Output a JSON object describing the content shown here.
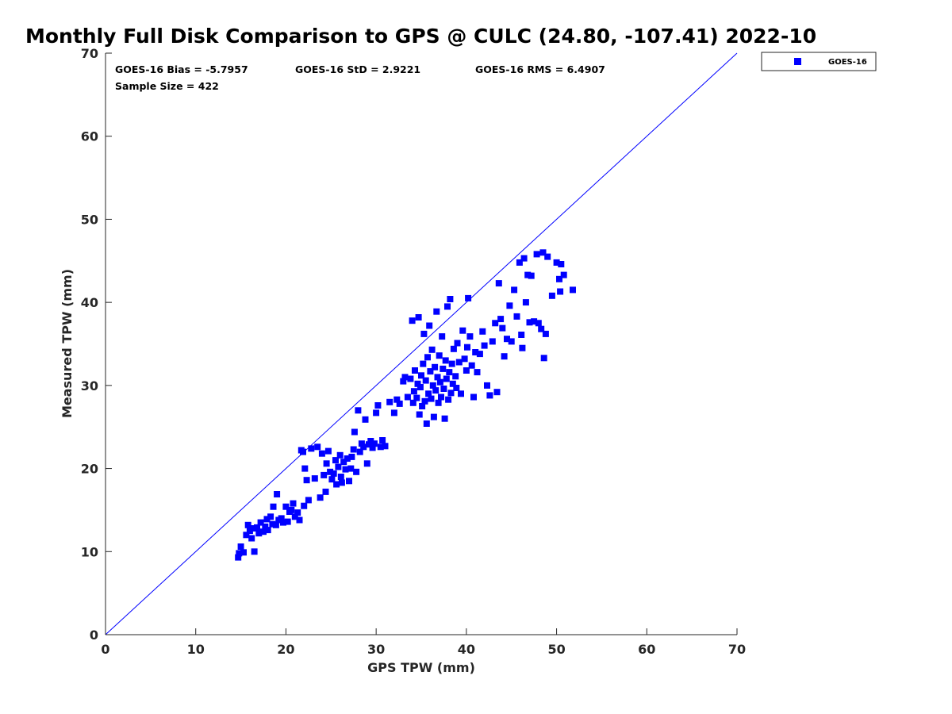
{
  "chart_data": {
    "type": "scatter",
    "title": "Monthly Full Disk Comparison to GPS @ CULC (24.80, -107.41) 2022-10",
    "xlabel": "GPS TPW (mm)",
    "ylabel": "Measured TPW (mm)",
    "xlim": [
      0,
      70
    ],
    "ylim": [
      0,
      70
    ],
    "xticks": [
      "0",
      "10",
      "20",
      "30",
      "40",
      "50",
      "60",
      "70"
    ],
    "yticks": [
      "0",
      "10",
      "20",
      "30",
      "40",
      "50",
      "60",
      "70"
    ],
    "grid": false,
    "legend_position": "top-right (outside plot)",
    "stats": {
      "bias": "GOES-16 Bias = -5.7957",
      "std": "GOES-16 StD = 2.9221",
      "rms": "GOES-16 RMS = 6.4907",
      "sample": "Sample Size = 422"
    },
    "reference_line": {
      "from": [
        0,
        0
      ],
      "to": [
        70,
        70
      ],
      "color": "#0000ff"
    },
    "series": [
      {
        "name": "GOES-16",
        "color": "#0000ff",
        "marker": "square",
        "points": [
          [
            14.7,
            9.3
          ],
          [
            14.8,
            9.8
          ],
          [
            15.0,
            10.6
          ],
          [
            15.3,
            9.9
          ],
          [
            15.6,
            12.0
          ],
          [
            15.8,
            13.2
          ],
          [
            16.0,
            12.5
          ],
          [
            16.2,
            11.6
          ],
          [
            16.4,
            12.8
          ],
          [
            16.5,
            10.0
          ],
          [
            16.8,
            12.9
          ],
          [
            17.0,
            12.2
          ],
          [
            17.2,
            13.5
          ],
          [
            17.5,
            12.4
          ],
          [
            17.7,
            13.0
          ],
          [
            17.9,
            13.9
          ],
          [
            18.0,
            12.6
          ],
          [
            18.3,
            14.2
          ],
          [
            18.5,
            13.3
          ],
          [
            18.6,
            15.4
          ],
          [
            18.9,
            13.2
          ],
          [
            19.0,
            16.9
          ],
          [
            19.2,
            13.8
          ],
          [
            19.5,
            14.0
          ],
          [
            19.7,
            13.5
          ],
          [
            20.0,
            15.4
          ],
          [
            20.2,
            13.6
          ],
          [
            20.4,
            14.8
          ],
          [
            20.6,
            15.0
          ],
          [
            20.8,
            15.8
          ],
          [
            21.0,
            14.2
          ],
          [
            21.3,
            14.7
          ],
          [
            21.5,
            13.8
          ],
          [
            21.7,
            22.2
          ],
          [
            21.9,
            22.0
          ],
          [
            22.0,
            15.5
          ],
          [
            22.1,
            20.0
          ],
          [
            22.3,
            18.6
          ],
          [
            22.5,
            16.2
          ],
          [
            22.8,
            22.4
          ],
          [
            23.2,
            18.8
          ],
          [
            23.5,
            22.6
          ],
          [
            23.8,
            16.5
          ],
          [
            24.0,
            21.8
          ],
          [
            24.2,
            19.2
          ],
          [
            24.4,
            17.2
          ],
          [
            24.5,
            20.6
          ],
          [
            24.7,
            22.1
          ],
          [
            24.9,
            19.6
          ],
          [
            25.1,
            18.7
          ],
          [
            25.3,
            19.4
          ],
          [
            25.5,
            21.0
          ],
          [
            25.6,
            18.1
          ],
          [
            25.8,
            20.2
          ],
          [
            26.0,
            21.6
          ],
          [
            26.1,
            19.0
          ],
          [
            26.2,
            18.3
          ],
          [
            26.4,
            20.8
          ],
          [
            26.6,
            19.9
          ],
          [
            26.8,
            21.2
          ],
          [
            27.0,
            18.5
          ],
          [
            27.2,
            20.0
          ],
          [
            27.3,
            21.4
          ],
          [
            27.5,
            22.3
          ],
          [
            27.6,
            24.4
          ],
          [
            27.8,
            19.6
          ],
          [
            28.0,
            27.0
          ],
          [
            28.2,
            22.0
          ],
          [
            28.4,
            23.0
          ],
          [
            28.6,
            22.6
          ],
          [
            28.8,
            25.9
          ],
          [
            29.0,
            20.6
          ],
          [
            29.2,
            22.9
          ],
          [
            29.4,
            23.3
          ],
          [
            29.6,
            22.5
          ],
          [
            29.8,
            23.0
          ],
          [
            30.0,
            26.7
          ],
          [
            30.2,
            27.6
          ],
          [
            30.5,
            22.6
          ],
          [
            30.7,
            23.4
          ],
          [
            31.0,
            22.7
          ],
          [
            31.5,
            28.0
          ],
          [
            32.0,
            26.7
          ],
          [
            32.3,
            28.3
          ],
          [
            32.6,
            27.8
          ],
          [
            33.0,
            30.5
          ],
          [
            33.2,
            31.0
          ],
          [
            33.5,
            28.6
          ],
          [
            33.8,
            30.8
          ],
          [
            34.0,
            37.8
          ],
          [
            34.1,
            27.9
          ],
          [
            34.2,
            29.3
          ],
          [
            34.3,
            31.8
          ],
          [
            34.5,
            28.5
          ],
          [
            34.6,
            30.2
          ],
          [
            34.7,
            38.2
          ],
          [
            34.8,
            26.5
          ],
          [
            34.9,
            29.8
          ],
          [
            35.0,
            31.2
          ],
          [
            35.1,
            27.5
          ],
          [
            35.2,
            32.6
          ],
          [
            35.3,
            36.2
          ],
          [
            35.4,
            28.1
          ],
          [
            35.5,
            30.6
          ],
          [
            35.6,
            25.4
          ],
          [
            35.7,
            33.4
          ],
          [
            35.8,
            29.0
          ],
          [
            35.9,
            37.2
          ],
          [
            36.0,
            31.7
          ],
          [
            36.1,
            28.4
          ],
          [
            36.2,
            34.3
          ],
          [
            36.3,
            30.0
          ],
          [
            36.4,
            26.2
          ],
          [
            36.5,
            32.2
          ],
          [
            36.6,
            29.4
          ],
          [
            36.7,
            38.9
          ],
          [
            36.8,
            31.0
          ],
          [
            36.9,
            27.9
          ],
          [
            37.0,
            33.6
          ],
          [
            37.1,
            30.4
          ],
          [
            37.2,
            28.6
          ],
          [
            37.3,
            35.9
          ],
          [
            37.4,
            32.0
          ],
          [
            37.5,
            29.6
          ],
          [
            37.6,
            26.0
          ],
          [
            37.7,
            33.0
          ],
          [
            37.8,
            30.8
          ],
          [
            37.9,
            39.5
          ],
          [
            38.0,
            28.3
          ],
          [
            38.1,
            31.6
          ],
          [
            38.2,
            40.4
          ],
          [
            38.3,
            29.1
          ],
          [
            38.4,
            32.6
          ],
          [
            38.5,
            30.2
          ],
          [
            38.6,
            34.4
          ],
          [
            38.8,
            31.1
          ],
          [
            38.9,
            29.7
          ],
          [
            39.0,
            35.1
          ],
          [
            39.2,
            32.8
          ],
          [
            39.4,
            29.0
          ],
          [
            39.6,
            36.6
          ],
          [
            39.8,
            33.2
          ],
          [
            40.0,
            31.8
          ],
          [
            40.1,
            34.6
          ],
          [
            40.2,
            40.5
          ],
          [
            40.4,
            35.9
          ],
          [
            40.6,
            32.4
          ],
          [
            40.8,
            28.6
          ],
          [
            41.0,
            34.0
          ],
          [
            41.2,
            31.6
          ],
          [
            41.5,
            33.8
          ],
          [
            41.8,
            36.5
          ],
          [
            42.0,
            34.8
          ],
          [
            42.3,
            30.0
          ],
          [
            42.6,
            28.8
          ],
          [
            42.9,
            35.3
          ],
          [
            43.2,
            37.5
          ],
          [
            43.4,
            29.2
          ],
          [
            43.6,
            42.3
          ],
          [
            43.8,
            38.0
          ],
          [
            44.0,
            36.9
          ],
          [
            44.2,
            33.5
          ],
          [
            44.5,
            35.6
          ],
          [
            44.8,
            39.6
          ],
          [
            45.0,
            35.3
          ],
          [
            45.3,
            41.5
          ],
          [
            45.6,
            38.3
          ],
          [
            45.9,
            44.8
          ],
          [
            46.1,
            36.1
          ],
          [
            46.2,
            34.5
          ],
          [
            46.4,
            45.3
          ],
          [
            46.6,
            40.0
          ],
          [
            46.8,
            43.3
          ],
          [
            47.0,
            37.6
          ],
          [
            47.2,
            43.2
          ],
          [
            47.5,
            37.7
          ],
          [
            47.8,
            45.8
          ],
          [
            48.0,
            37.5
          ],
          [
            48.3,
            36.8
          ],
          [
            48.5,
            46.0
          ],
          [
            48.6,
            33.3
          ],
          [
            48.8,
            36.2
          ],
          [
            49.0,
            45.5
          ],
          [
            49.5,
            40.8
          ],
          [
            50.0,
            44.8
          ],
          [
            50.3,
            42.8
          ],
          [
            50.5,
            44.6
          ],
          [
            50.8,
            43.3
          ],
          [
            51.8,
            41.5
          ],
          [
            50.4,
            41.3
          ]
        ]
      }
    ]
  }
}
